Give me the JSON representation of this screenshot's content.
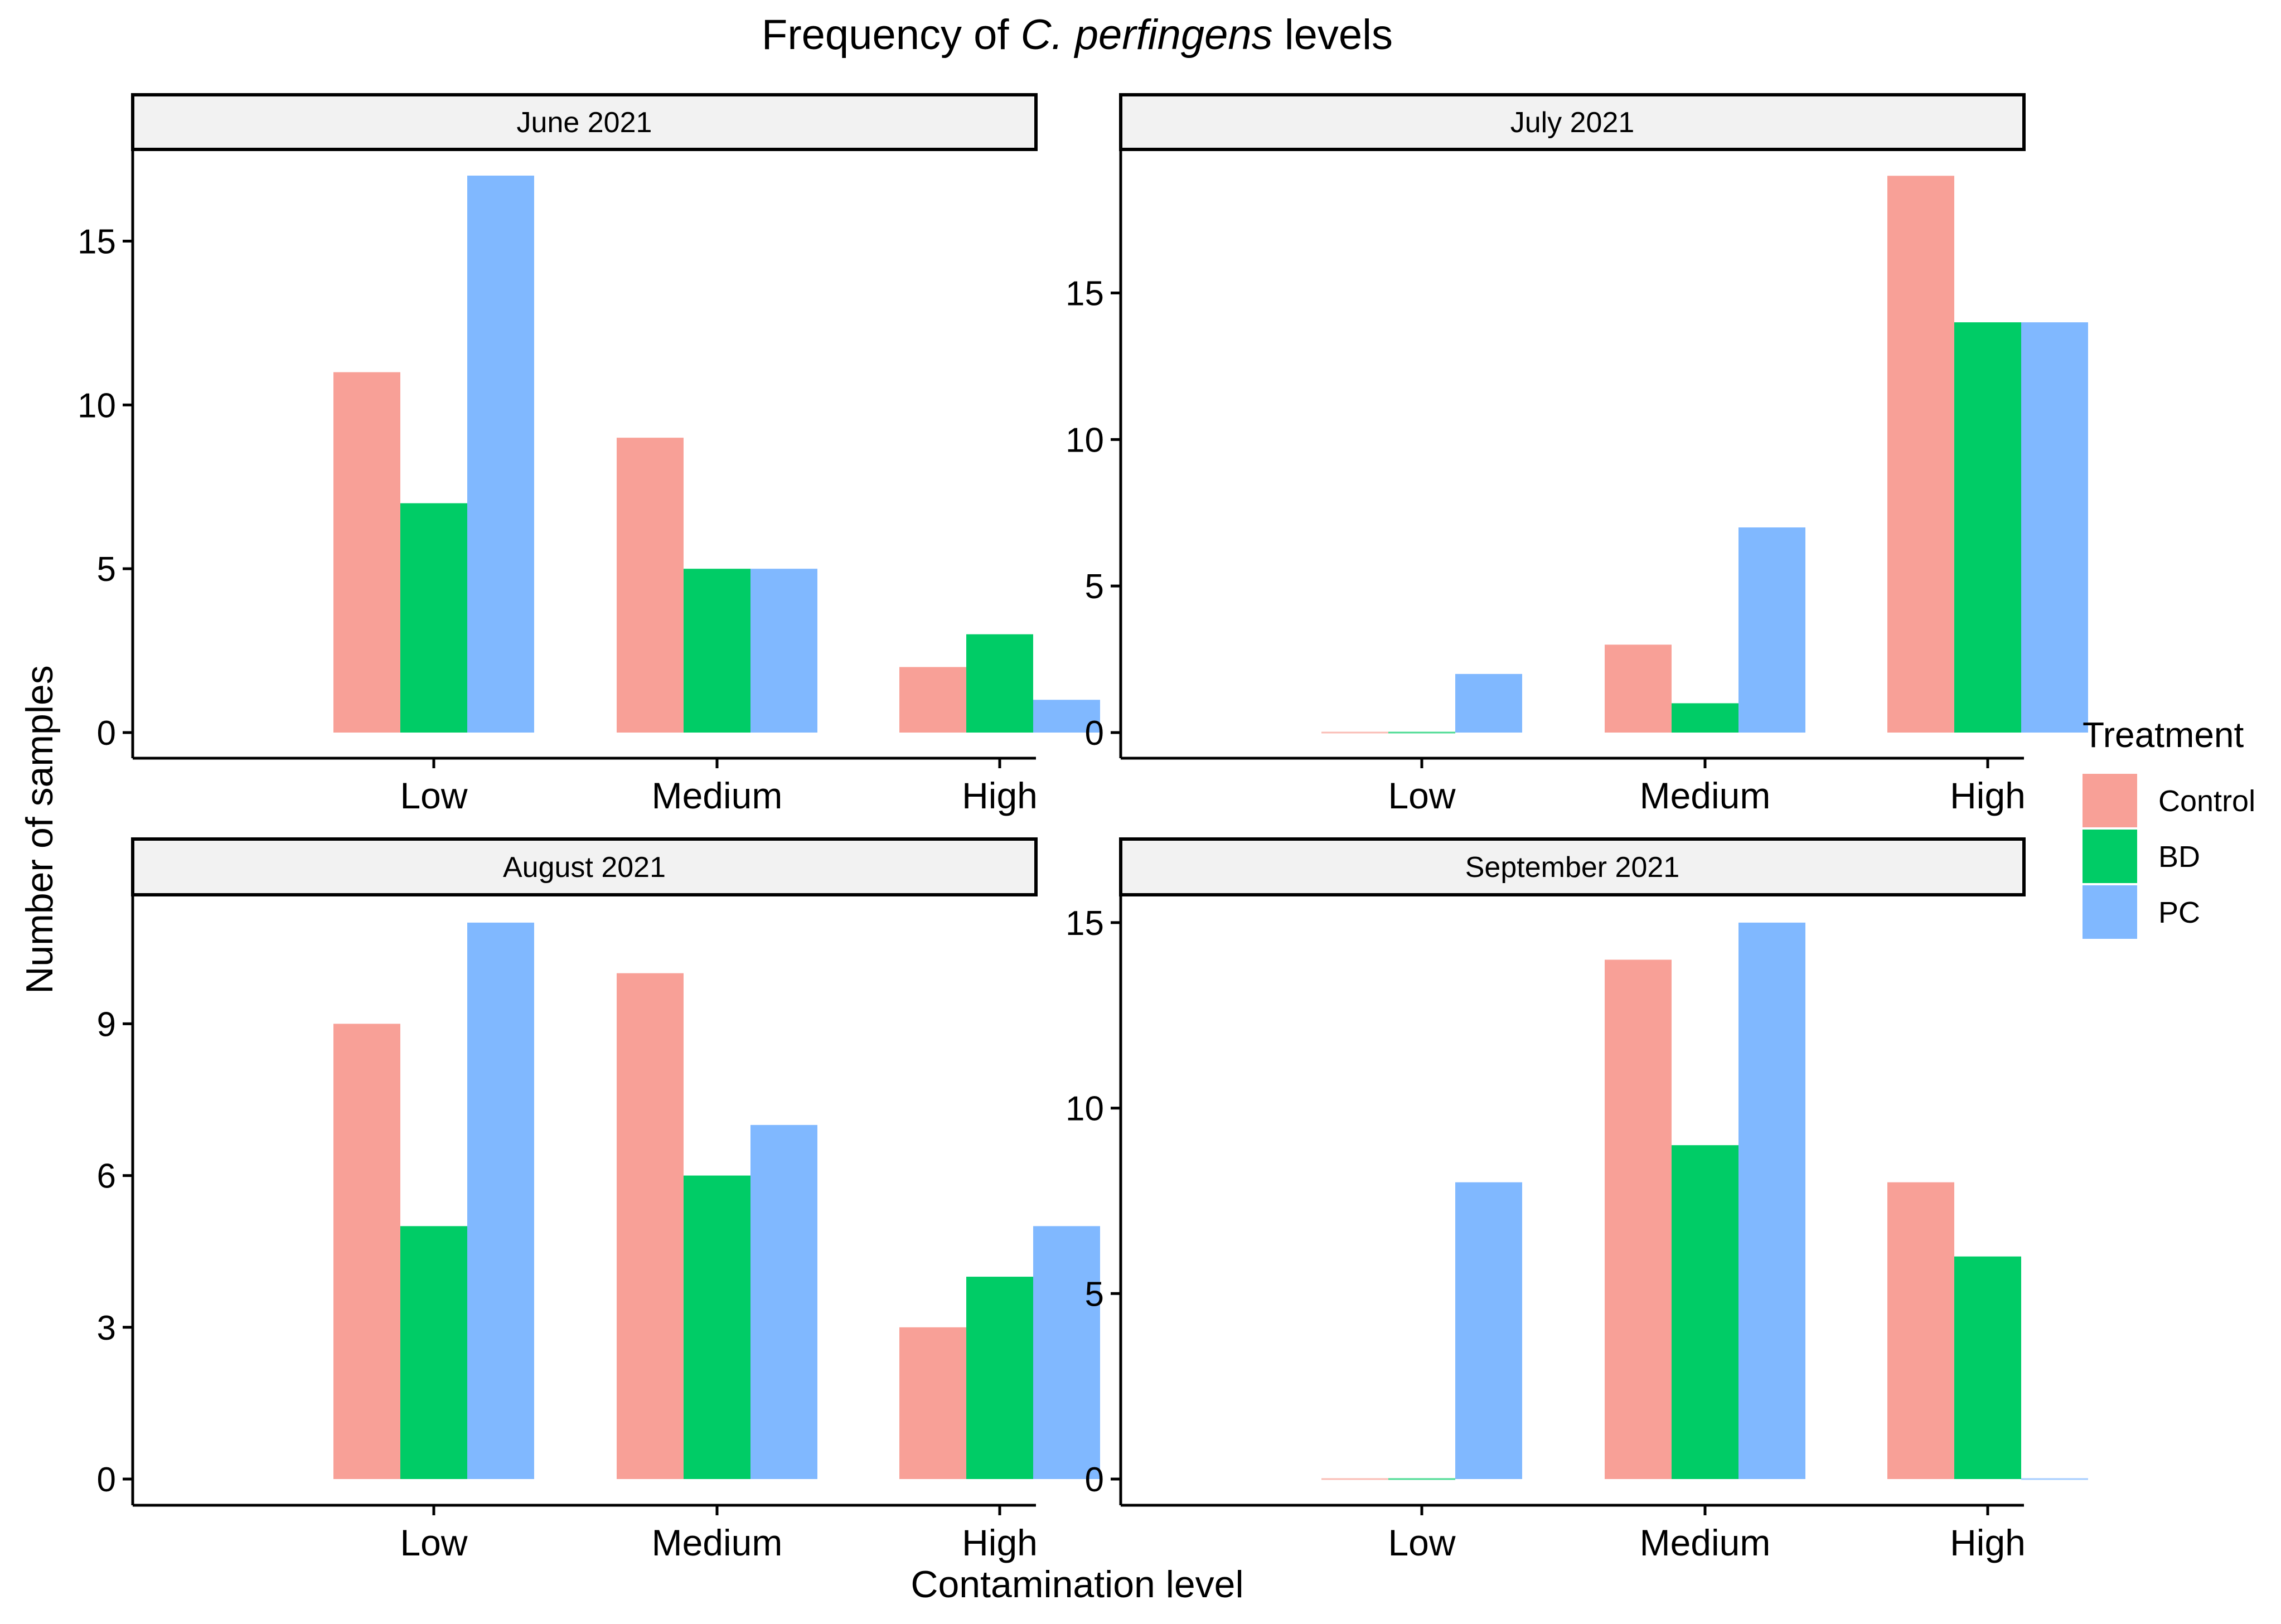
{
  "chart_data": {
    "type": "bar",
    "title": {
      "prefix": "Frequency of ",
      "italic": "C. perfingens",
      "suffix": " levels"
    },
    "xlabel": "Contamination level",
    "ylabel": "Number of samples",
    "legend": {
      "title": "Treatment",
      "position": "right",
      "entries": [
        {
          "name": "Control",
          "color": "#F8A097"
        },
        {
          "name": "BD",
          "color": "#00CC66"
        },
        {
          "name": "PC",
          "color": "#80B8FF"
        }
      ]
    },
    "categories": [
      "Low",
      "Medium",
      "High"
    ],
    "panels": [
      {
        "title": "June 2021",
        "ylim": [
          0,
          17.8
        ],
        "yticks": [
          0,
          5,
          10,
          15
        ],
        "series": [
          {
            "name": "Control",
            "values": [
              11,
              9,
              2
            ]
          },
          {
            "name": "BD",
            "values": [
              7,
              5,
              3
            ]
          },
          {
            "name": "PC",
            "values": [
              17,
              5,
              1
            ]
          }
        ]
      },
      {
        "title": "July 2021",
        "ylim": [
          0,
          19.9
        ],
        "yticks": [
          0,
          5,
          10,
          15
        ],
        "series": [
          {
            "name": "Control",
            "values": [
              0,
              3,
              19
            ]
          },
          {
            "name": "BD",
            "values": [
              0,
              1,
              14
            ]
          },
          {
            "name": "PC",
            "values": [
              2,
              7,
              14
            ]
          }
        ]
      },
      {
        "title": "August 2021",
        "ylim": [
          0,
          11.55
        ],
        "yticks": [
          0,
          3,
          6,
          9
        ],
        "series": [
          {
            "name": "Control",
            "values": [
              9,
              10,
              3
            ]
          },
          {
            "name": "BD",
            "values": [
              5,
              6,
              4
            ]
          },
          {
            "name": "PC",
            "values": [
              11,
              7,
              5
            ]
          }
        ]
      },
      {
        "title": "September 2021",
        "ylim": [
          0,
          15.75
        ],
        "yticks": [
          0,
          5,
          10,
          15
        ],
        "series": [
          {
            "name": "Control",
            "values": [
              0,
              14,
              8
            ]
          },
          {
            "name": "BD",
            "values": [
              0,
              9,
              6
            ]
          },
          {
            "name": "PC",
            "values": [
              8,
              15,
              0
            ]
          }
        ]
      }
    ]
  }
}
